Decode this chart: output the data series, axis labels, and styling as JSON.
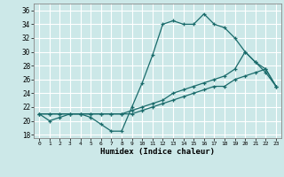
{
  "title": "",
  "xlabel": "Humidex (Indice chaleur)",
  "ylabel": "",
  "bg_color": "#cce8e8",
  "grid_color": "#ffffff",
  "line_color": "#1a6b6b",
  "xlim": [
    -0.5,
    23.5
  ],
  "ylim": [
    17.5,
    37
  ],
  "xticks": [
    0,
    1,
    2,
    3,
    4,
    5,
    6,
    7,
    8,
    9,
    10,
    11,
    12,
    13,
    14,
    15,
    16,
    17,
    18,
    19,
    20,
    21,
    22,
    23
  ],
  "yticks": [
    18,
    20,
    22,
    24,
    26,
    28,
    30,
    32,
    34,
    36
  ],
  "series1": [
    21,
    20,
    20.5,
    21,
    21,
    20.5,
    19.5,
    18.5,
    18.5,
    22,
    25.5,
    29.5,
    34,
    34.5,
    34,
    34,
    35.5,
    34,
    33.5,
    32,
    30,
    28.5,
    27,
    25
  ],
  "series2": [
    21,
    21,
    21,
    21,
    21,
    21,
    21,
    21,
    21,
    21.5,
    22,
    22.5,
    23,
    24,
    24.5,
    25,
    25.5,
    26,
    26.5,
    27.5,
    30,
    28.5,
    27.5,
    25
  ],
  "series3": [
    21,
    21,
    21,
    21,
    21,
    21,
    21,
    21,
    21,
    21,
    21.5,
    22,
    22.5,
    23,
    23.5,
    24,
    24.5,
    25,
    25,
    26,
    26.5,
    27,
    27.5,
    25
  ]
}
